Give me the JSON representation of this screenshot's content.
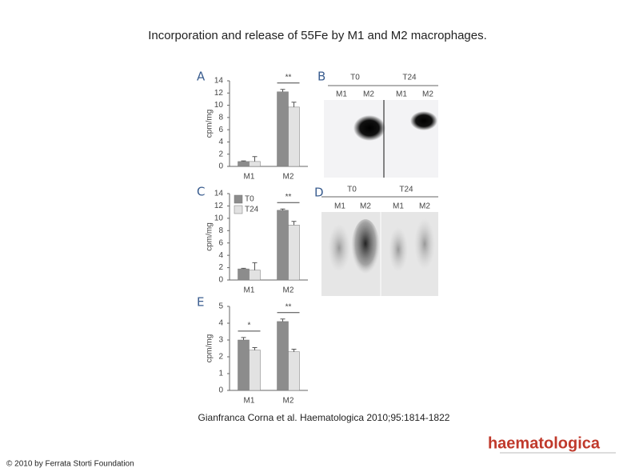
{
  "title": "Incorporation and release of 55Fe by M1 and M2 macrophages.",
  "chart_data": [
    {
      "type": "bar",
      "panel": "A",
      "ylabel": "cpm/mg",
      "categories": [
        "M1",
        "M2"
      ],
      "series": [
        {
          "color": "#8c8c8c",
          "values": [
            0.8,
            12.2
          ],
          "errors": [
            0.1,
            0.4
          ]
        },
        {
          "color": "#e2e2e2",
          "values": [
            0.8,
            9.7
          ],
          "errors": [
            0.8,
            0.8
          ]
        }
      ],
      "annotations": [
        null,
        "**"
      ],
      "ylim": [
        0,
        14
      ],
      "yticks": [
        0,
        2,
        4,
        6,
        8,
        10,
        12,
        14
      ]
    },
    {
      "type": "bar",
      "panel": "C",
      "ylabel": "cpm/mg",
      "categories": [
        "M1",
        "M2"
      ],
      "series": [
        {
          "name": "T0",
          "color": "#8c8c8c",
          "values": [
            1.8,
            11.3
          ],
          "errors": [
            0.1,
            0.2
          ]
        },
        {
          "name": "T24",
          "color": "#e2e2e2",
          "values": [
            1.6,
            8.9
          ],
          "errors": [
            1.2,
            0.6
          ]
        }
      ],
      "annotations": [
        null,
        "**"
      ],
      "ylim": [
        0,
        14
      ],
      "yticks": [
        0,
        2,
        4,
        6,
        8,
        10,
        12,
        14
      ]
    },
    {
      "type": "bar",
      "panel": "E",
      "ylabel": "cpm/mg",
      "categories": [
        "M1",
        "M2"
      ],
      "series": [
        {
          "color": "#8c8c8c",
          "values": [
            3.0,
            4.1
          ],
          "errors": [
            0.15,
            0.15
          ]
        },
        {
          "color": "#e2e2e2",
          "values": [
            2.4,
            2.3
          ],
          "errors": [
            0.15,
            0.15
          ]
        }
      ],
      "annotations": [
        "*",
        "**"
      ],
      "ylim": [
        0,
        5
      ],
      "yticks": [
        0,
        1,
        2,
        3,
        4,
        5
      ]
    }
  ],
  "blots": [
    {
      "panel": "B",
      "groups": [
        "T0",
        "T24"
      ],
      "lanes": [
        "M1",
        "M2",
        "M1",
        "M2"
      ]
    },
    {
      "panel": "D",
      "groups": [
        "T0",
        "T24"
      ],
      "lanes": [
        "M1",
        "M2",
        "M1",
        "M2"
      ]
    }
  ],
  "citation": "Gianfranca Corna et al. Haematologica 2010;95:1814-1822",
  "copyright": "© 2010 by Ferrata Storti Foundation",
  "logo": "haematologica"
}
